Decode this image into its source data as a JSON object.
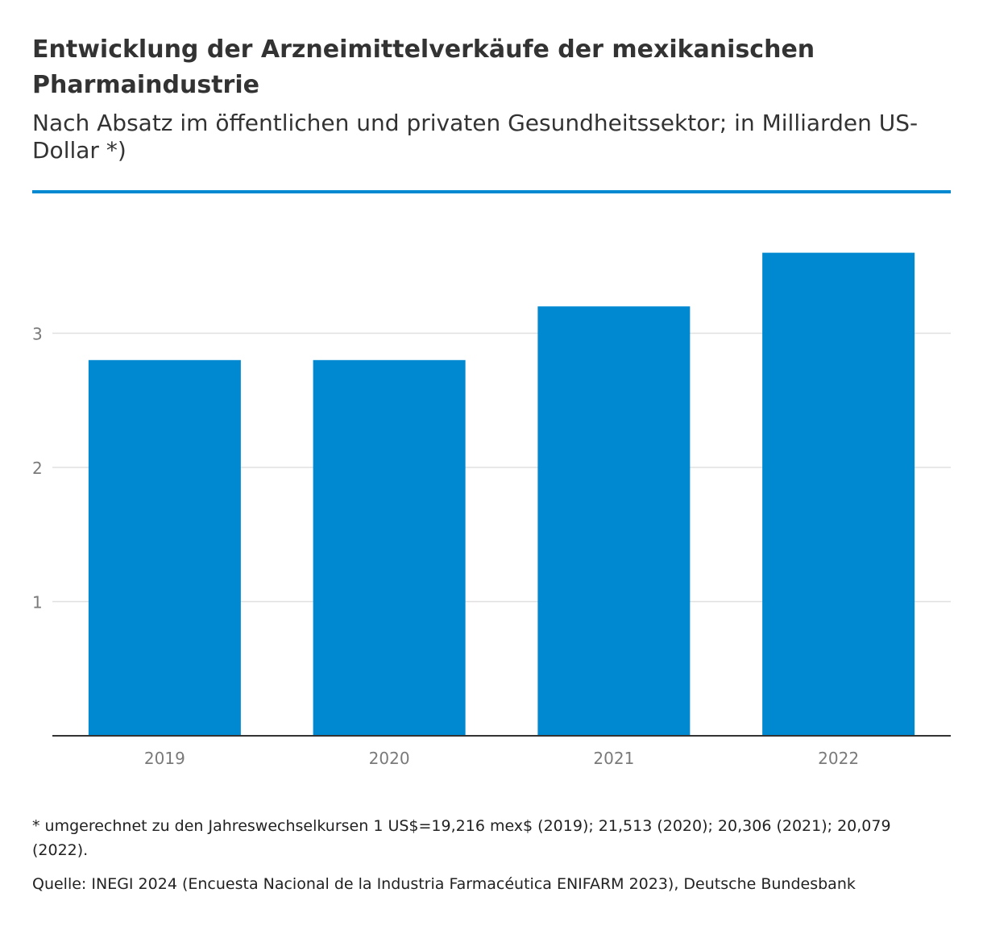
{
  "header": {
    "title": "Entwicklung der Arzneimittelverkäufe der mexikanischen Pharmaindustrie",
    "subtitle": "Nach Absatz im öffentlichen und privaten Gesundheitssektor; in Milliarden US-Dollar *)"
  },
  "footer": {
    "footnote": "* umgerechnet zu den Jahreswechselkursen 1 US$=19,216 mex$ (2019); 21,513 (2020); 20,306 (2021); 20,079 (2022).",
    "source": "Quelle: INEGI 2024 (Encuesta Nacional de la Industria Farmacéutica ENIFARM 2023), Deutsche Bundesbank"
  },
  "colors": {
    "bar": "#0089d1",
    "accent_line": "#0089d1",
    "grid": "#e0e0e0",
    "axis": "#333333",
    "tick_text": "#7a7a7a"
  },
  "chart_data": {
    "type": "bar",
    "title": "",
    "xlabel": "",
    "ylabel": "",
    "categories": [
      "2019",
      "2020",
      "2021",
      "2022"
    ],
    "values": [
      2.8,
      2.8,
      3.2,
      3.6
    ],
    "yticks": [
      1,
      2,
      3
    ],
    "ylim": [
      0,
      3.6
    ],
    "grid": true,
    "legend": "none"
  }
}
